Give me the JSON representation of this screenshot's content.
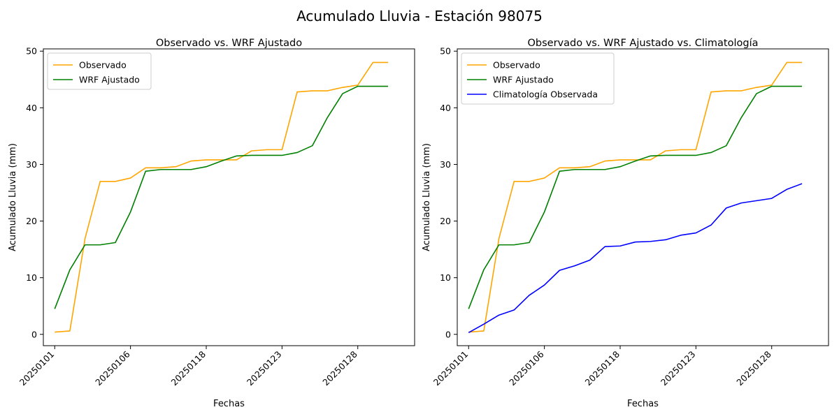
{
  "figure": {
    "title": "Acumulado Lluvia - Estación 98075"
  },
  "chart_data": [
    {
      "type": "line",
      "title": "Observado vs. WRF Ajustado",
      "xlabel": "Fechas",
      "ylabel": "Acumulado Lluvia (mm)",
      "x_tick_labels": [
        "20250101",
        "20250106",
        "20250118",
        "20250123",
        "20250128"
      ],
      "x_tick_index": [
        0,
        5,
        10,
        15,
        20
      ],
      "y_ticks": [
        0,
        10,
        20,
        30,
        40,
        50
      ],
      "ylim": [
        -2.0,
        50.4
      ],
      "x_index_range": [
        -0.75,
        23.75
      ],
      "grid": false,
      "legend_position": "upper-left",
      "series": [
        {
          "name": "Observado",
          "color": "#ffa500",
          "values": [
            0.4,
            0.6,
            16.9,
            27.0,
            27.0,
            27.6,
            29.4,
            29.4,
            29.6,
            30.6,
            30.8,
            30.8,
            30.8,
            32.4,
            32.6,
            32.6,
            42.8,
            43.0,
            43.0,
            43.6,
            44.0,
            48.0,
            48.0
          ]
        },
        {
          "name": "WRF Ajustado",
          "color": "#008000",
          "values": [
            4.5,
            11.4,
            15.8,
            15.8,
            16.2,
            21.6,
            28.8,
            29.1,
            29.1,
            29.1,
            29.6,
            30.6,
            31.5,
            31.6,
            31.6,
            31.6,
            32.1,
            33.3,
            38.3,
            42.5,
            43.8,
            43.8,
            43.8
          ]
        }
      ]
    },
    {
      "type": "line",
      "title": "Observado vs. WRF Ajustado vs. Climatología",
      "xlabel": "Fechas",
      "ylabel": "Acumulado Lluvia (mm)",
      "x_tick_labels": [
        "20250101",
        "20250106",
        "20250118",
        "20250123",
        "20250128"
      ],
      "x_tick_index": [
        0,
        5,
        10,
        15,
        20
      ],
      "y_ticks": [
        0,
        10,
        20,
        30,
        40,
        50
      ],
      "ylim": [
        -2.0,
        50.4
      ],
      "x_index_range": [
        -0.75,
        23.75
      ],
      "grid": false,
      "legend_position": "upper-left",
      "series": [
        {
          "name": "Observado",
          "color": "#ffa500",
          "values": [
            0.4,
            0.6,
            16.9,
            27.0,
            27.0,
            27.6,
            29.4,
            29.4,
            29.6,
            30.6,
            30.8,
            30.8,
            30.8,
            32.4,
            32.6,
            32.6,
            42.8,
            43.0,
            43.0,
            43.6,
            44.0,
            48.0,
            48.0
          ]
        },
        {
          "name": "WRF Ajustado",
          "color": "#008000",
          "values": [
            4.5,
            11.4,
            15.8,
            15.8,
            16.2,
            21.6,
            28.8,
            29.1,
            29.1,
            29.1,
            29.6,
            30.6,
            31.5,
            31.6,
            31.6,
            31.6,
            32.1,
            33.3,
            38.3,
            42.5,
            43.8,
            43.8,
            43.8
          ]
        },
        {
          "name": "Climatología Observada",
          "color": "#0000ff",
          "values": [
            0.3,
            1.8,
            3.4,
            4.3,
            6.9,
            8.7,
            11.3,
            12.1,
            13.1,
            15.5,
            15.6,
            16.3,
            16.4,
            16.7,
            17.5,
            17.9,
            19.3,
            22.3,
            23.2,
            23.6,
            24.0,
            25.6,
            26.6
          ]
        }
      ]
    }
  ]
}
